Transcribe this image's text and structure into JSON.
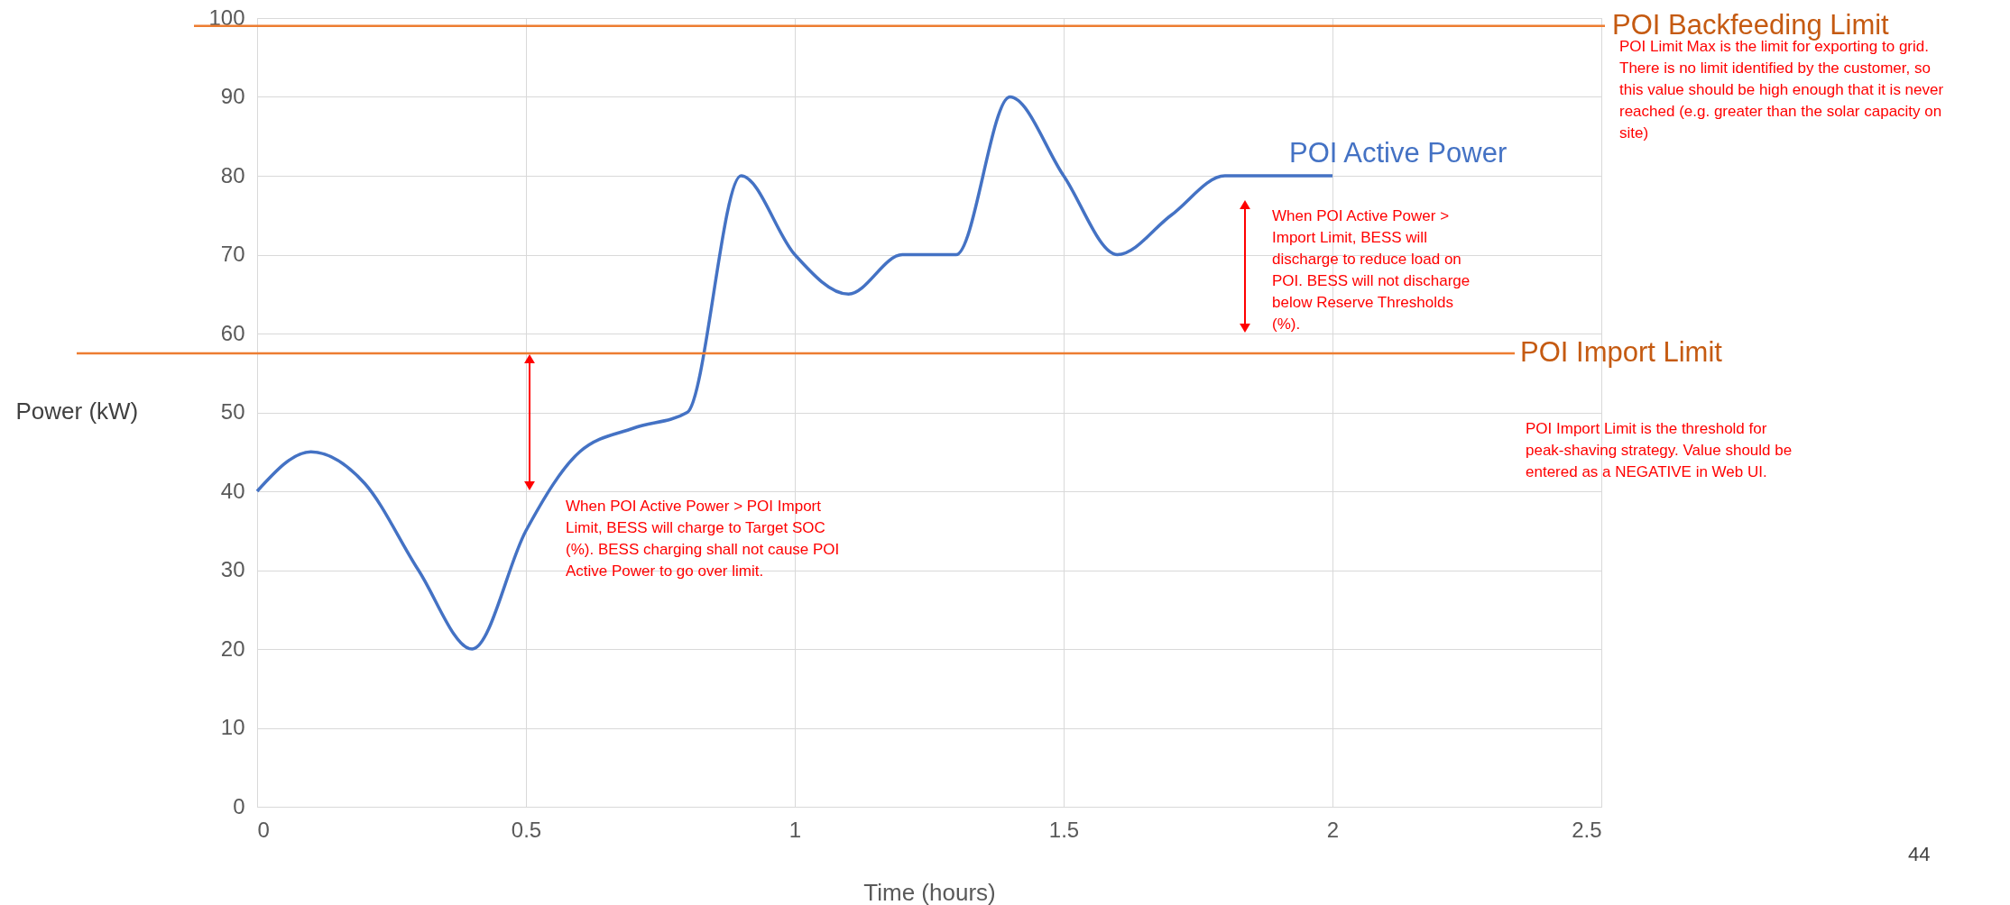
{
  "chart_data": {
    "type": "line",
    "xlabel": "Time (hours)",
    "ylabel": "Power (kW)",
    "xlim": [
      0,
      2.5
    ],
    "xticks": [
      0,
      0.5,
      1,
      1.5,
      2,
      2.5
    ],
    "ylim": [
      0,
      100
    ],
    "yticks": [
      0,
      10,
      20,
      30,
      40,
      50,
      60,
      70,
      80,
      90,
      100
    ],
    "grid": true,
    "legend": false,
    "marker": "none",
    "line_style": "solid",
    "series": [
      {
        "name": "POI Active Power",
        "color": "#4472c4",
        "x": [
          0,
          0.1,
          0.2,
          0.3,
          0.4,
          0.5,
          0.6,
          0.7,
          0.8,
          0.9,
          1.0,
          1.1,
          1.2,
          1.3,
          1.4,
          1.5,
          1.6,
          1.7,
          1.8,
          1.9,
          2.0
        ],
        "values": [
          40,
          45,
          41,
          30,
          20,
          35,
          45,
          48,
          50,
          80,
          70,
          65,
          70,
          70,
          90,
          80,
          70,
          75,
          80,
          80,
          80
        ]
      }
    ],
    "ref_lines": [
      {
        "axis": "y",
        "value": 99,
        "label": "POI Backfeeding Limit",
        "color": "#ed7d31"
      },
      {
        "axis": "y",
        "value": 57.5,
        "label": "POI Import Limit",
        "color": "#ed7d31"
      }
    ],
    "annotations": [
      "When POI Active Power > POI Import Limit, BESS will charge to Target SOC (%). BESS charging shall not cause POI Active Power to go over limit.",
      "When POI Active Power > Import Limit, BESS will discharge to reduce load on POI. BESS will not discharge below Reserve Thresholds (%).",
      "POI Limit Max is the limit for exporting to grid. There is no limit identified by the customer, so this value should be high enough that it is never reached (e.g. greater than the solar capacity on site)",
      "POI Import Limit is the threshold for peak-shaving strategy. Value should be entered as a NEGATIVE in Web UI.",
      "44"
    ]
  }
}
